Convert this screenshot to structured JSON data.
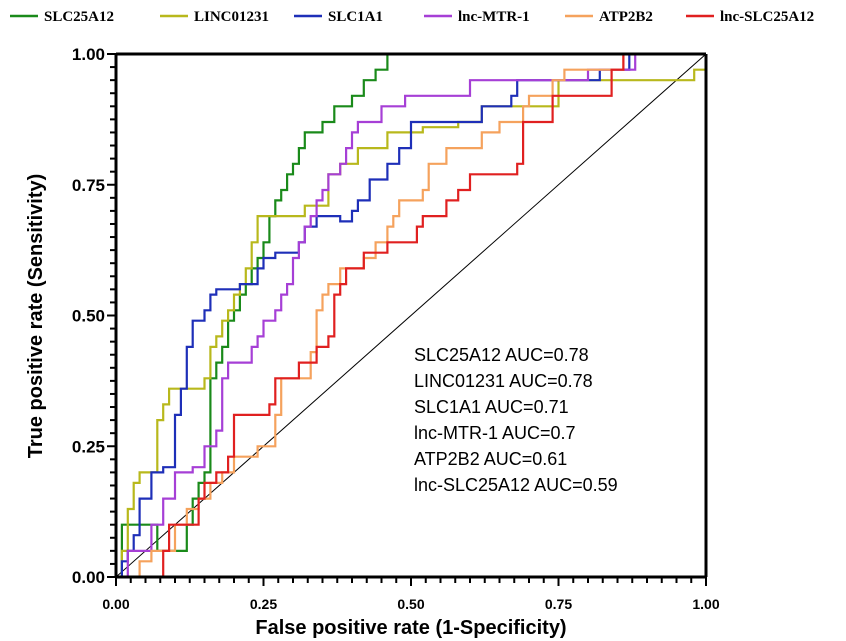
{
  "chart_data": {
    "type": "line",
    "xlabel": "False positive rate (1-Specificity)",
    "ylabel": "True positive rate (Sensitivity)",
    "xlim": [
      0,
      1
    ],
    "ylim": [
      0,
      1
    ],
    "x_ticks": [
      "0.00",
      "0.25",
      "0.50",
      "0.75",
      "1.00"
    ],
    "y_ticks": [
      "0.00",
      "0.25",
      "0.50",
      "0.75",
      "1.00"
    ],
    "legend_position": "top",
    "reference_line": {
      "x": [
        0,
        1
      ],
      "y": [
        0,
        1
      ],
      "color": "#000000"
    },
    "annotations": [
      "SLC25A12 AUC=0.78",
      "LINC01231 AUC=0.78",
      "SLC1A1 AUC=0.71",
      "lnc-MTR-1 AUC=0.7",
      "ATP2B2 AUC=0.61",
      "lnc-SLC25A12 AUC=0.59"
    ],
    "series": [
      {
        "name": "SLC25A12",
        "color": "#1a8a1a",
        "x": [
          0,
          0.01,
          0.01,
          0.06,
          0.07,
          0.11,
          0.12,
          0.13,
          0.14,
          0.15,
          0.16,
          0.17,
          0.18,
          0.19,
          0.2,
          0.21,
          0.22,
          0.23,
          0.24,
          0.25,
          0.26,
          0.27,
          0.28,
          0.29,
          0.3,
          0.31,
          0.32,
          0.33,
          0.35,
          0.37,
          0.38,
          0.4,
          0.42,
          0.44,
          0.46,
          0.47,
          0.49,
          0.85,
          0.85,
          1.0
        ],
        "y": [
          0,
          0,
          0.1,
          0.1,
          0.05,
          0.05,
          0.1,
          0.15,
          0.18,
          0.2,
          0.38,
          0.41,
          0.44,
          0.49,
          0.51,
          0.54,
          0.56,
          0.59,
          0.61,
          0.64,
          0.69,
          0.72,
          0.74,
          0.77,
          0.79,
          0.82,
          0.85,
          0.85,
          0.87,
          0.9,
          0.9,
          0.92,
          0.95,
          0.97,
          1.0,
          1.0,
          1.0,
          1.0,
          1.0,
          1.0
        ]
      },
      {
        "name": "LINC01231",
        "color": "#b8b81c",
        "x": [
          0,
          0.01,
          0.02,
          0.03,
          0.04,
          0.05,
          0.06,
          0.07,
          0.08,
          0.09,
          0.1,
          0.11,
          0.13,
          0.14,
          0.15,
          0.16,
          0.17,
          0.18,
          0.19,
          0.2,
          0.21,
          0.22,
          0.23,
          0.24,
          0.25,
          0.26,
          0.27,
          0.28,
          0.29,
          0.32,
          0.34,
          0.36,
          0.38,
          0.39,
          0.41,
          0.45,
          0.46,
          0.48,
          0.51,
          0.52,
          0.56,
          0.58,
          0.62,
          0.75,
          0.77,
          0.96,
          0.98,
          1.0
        ],
        "y": [
          0,
          0.05,
          0.13,
          0.18,
          0.2,
          0.2,
          0.2,
          0.3,
          0.33,
          0.36,
          0.36,
          0.36,
          0.36,
          0.36,
          0.38,
          0.44,
          0.46,
          0.49,
          0.51,
          0.54,
          0.56,
          0.59,
          0.64,
          0.69,
          0.69,
          0.69,
          0.69,
          0.69,
          0.69,
          0.71,
          0.71,
          0.77,
          0.79,
          0.79,
          0.82,
          0.82,
          0.85,
          0.85,
          0.85,
          0.86,
          0.86,
          0.87,
          0.9,
          0.95,
          0.95,
          0.95,
          0.97,
          1.0
        ]
      },
      {
        "name": "SLC1A1",
        "color": "#1e2fb8",
        "x": [
          0,
          0.01,
          0.02,
          0.03,
          0.04,
          0.06,
          0.07,
          0.08,
          0.1,
          0.11,
          0.12,
          0.13,
          0.14,
          0.15,
          0.16,
          0.17,
          0.18,
          0.19,
          0.2,
          0.21,
          0.23,
          0.24,
          0.25,
          0.26,
          0.27,
          0.3,
          0.31,
          0.32,
          0.34,
          0.36,
          0.37,
          0.38,
          0.4,
          0.41,
          0.43,
          0.44,
          0.46,
          0.48,
          0.5,
          0.5,
          0.52,
          0.55,
          0.6,
          0.62,
          0.67,
          0.68,
          0.81,
          0.82,
          0.87,
          1.0
        ],
        "y": [
          0,
          0.03,
          0.05,
          0.08,
          0.15,
          0.2,
          0.2,
          0.21,
          0.31,
          0.36,
          0.44,
          0.49,
          0.49,
          0.51,
          0.54,
          0.55,
          0.55,
          0.55,
          0.55,
          0.56,
          0.56,
          0.59,
          0.61,
          0.61,
          0.62,
          0.62,
          0.64,
          0.67,
          0.69,
          0.69,
          0.69,
          0.68,
          0.7,
          0.72,
          0.76,
          0.76,
          0.79,
          0.82,
          0.85,
          0.87,
          0.87,
          0.87,
          0.87,
          0.9,
          0.92,
          0.95,
          0.95,
          0.97,
          1.0,
          1.0
        ]
      },
      {
        "name": "lnc-MTR-1",
        "color": "#a63fd6",
        "x": [
          0,
          0.02,
          0.04,
          0.06,
          0.08,
          0.1,
          0.11,
          0.13,
          0.15,
          0.17,
          0.18,
          0.19,
          0.21,
          0.23,
          0.24,
          0.25,
          0.26,
          0.27,
          0.28,
          0.29,
          0.3,
          0.31,
          0.32,
          0.33,
          0.34,
          0.35,
          0.36,
          0.37,
          0.38,
          0.39,
          0.4,
          0.41,
          0.43,
          0.45,
          0.47,
          0.49,
          0.5,
          0.51,
          0.52,
          0.56,
          0.6,
          0.64,
          0.68,
          0.72,
          0.76,
          0.8,
          0.84,
          0.88,
          1.0
        ],
        "y": [
          0,
          0.05,
          0.05,
          0.1,
          0.15,
          0.2,
          0.2,
          0.21,
          0.25,
          0.28,
          0.38,
          0.41,
          0.41,
          0.44,
          0.46,
          0.49,
          0.49,
          0.51,
          0.54,
          0.56,
          0.61,
          0.64,
          0.67,
          0.69,
          0.72,
          0.74,
          0.77,
          0.77,
          0.79,
          0.82,
          0.85,
          0.87,
          0.87,
          0.9,
          0.9,
          0.92,
          0.92,
          0.92,
          0.92,
          0.92,
          0.95,
          0.95,
          0.95,
          0.95,
          0.95,
          0.97,
          0.97,
          1.0,
          1.0
        ]
      },
      {
        "name": "ATP2B2",
        "color": "#f5a25d",
        "x": [
          0,
          0.02,
          0.04,
          0.06,
          0.08,
          0.1,
          0.12,
          0.14,
          0.16,
          0.18,
          0.2,
          0.22,
          0.24,
          0.26,
          0.27,
          0.28,
          0.3,
          0.32,
          0.33,
          0.34,
          0.35,
          0.36,
          0.38,
          0.4,
          0.42,
          0.44,
          0.46,
          0.47,
          0.48,
          0.52,
          0.53,
          0.55,
          0.56,
          0.58,
          0.6,
          0.62,
          0.63,
          0.65,
          0.66,
          0.68,
          0.69,
          0.7,
          0.74,
          0.76,
          0.8,
          0.84,
          0.86,
          0.88,
          1.0
        ],
        "y": [
          0,
          0,
          0.03,
          0.05,
          0.05,
          0.1,
          0.13,
          0.15,
          0.18,
          0.2,
          0.23,
          0.23,
          0.25,
          0.25,
          0.31,
          0.38,
          0.38,
          0.38,
          0.43,
          0.51,
          0.54,
          0.56,
          0.59,
          0.59,
          0.61,
          0.64,
          0.67,
          0.69,
          0.72,
          0.74,
          0.79,
          0.79,
          0.82,
          0.82,
          0.82,
          0.85,
          0.85,
          0.87,
          0.87,
          0.87,
          0.9,
          0.92,
          0.95,
          0.97,
          0.97,
          0.97,
          1.0,
          1.0,
          1.0
        ]
      },
      {
        "name": "lnc-SLC25A12",
        "color": "#e02020",
        "x": [
          0,
          0.03,
          0.06,
          0.08,
          0.09,
          0.1,
          0.12,
          0.14,
          0.15,
          0.17,
          0.18,
          0.19,
          0.2,
          0.2,
          0.21,
          0.23,
          0.25,
          0.26,
          0.27,
          0.28,
          0.29,
          0.3,
          0.31,
          0.33,
          0.34,
          0.35,
          0.36,
          0.37,
          0.38,
          0.39,
          0.41,
          0.42,
          0.44,
          0.46,
          0.48,
          0.5,
          0.51,
          0.52,
          0.54,
          0.56,
          0.58,
          0.6,
          0.62,
          0.65,
          0.68,
          0.69,
          0.72,
          0.74,
          0.77,
          0.81,
          0.84,
          0.86,
          0.88,
          1.0
        ],
        "y": [
          0,
          0,
          0,
          0.05,
          0.1,
          0.1,
          0.1,
          0.15,
          0.18,
          0.2,
          0.2,
          0.23,
          0.26,
          0.31,
          0.31,
          0.31,
          0.31,
          0.33,
          0.38,
          0.38,
          0.38,
          0.38,
          0.41,
          0.41,
          0.44,
          0.44,
          0.46,
          0.54,
          0.56,
          0.59,
          0.59,
          0.62,
          0.62,
          0.64,
          0.64,
          0.64,
          0.67,
          0.69,
          0.69,
          0.72,
          0.74,
          0.77,
          0.77,
          0.77,
          0.79,
          0.87,
          0.87,
          0.92,
          0.92,
          0.92,
          0.97,
          1.0,
          1.0,
          1.0
        ]
      }
    ]
  }
}
